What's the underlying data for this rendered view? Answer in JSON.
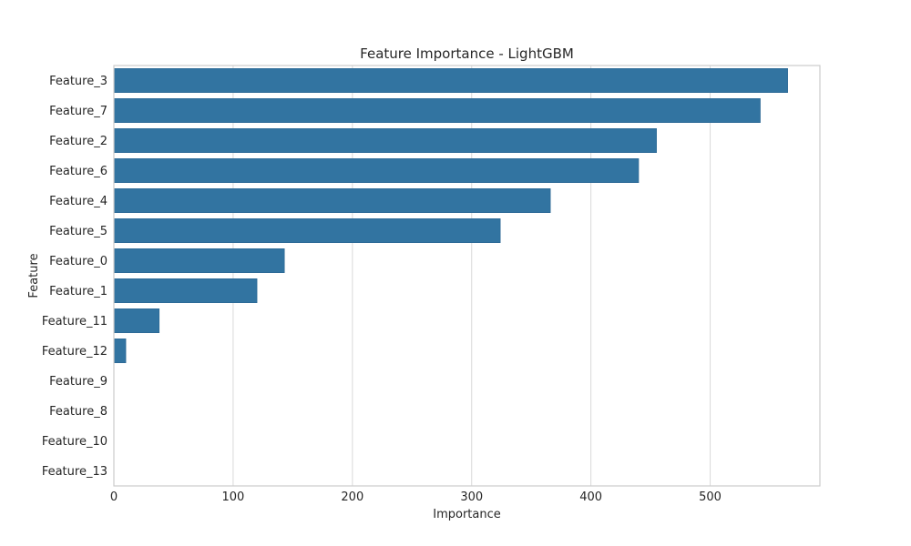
{
  "chart_data": {
    "type": "bar",
    "orientation": "horizontal",
    "title": "Feature Importance - LightGBM",
    "xlabel": "Importance",
    "ylabel": "Feature",
    "categories": [
      "Feature_3",
      "Feature_7",
      "Feature_2",
      "Feature_6",
      "Feature_4",
      "Feature_5",
      "Feature_0",
      "Feature_1",
      "Feature_11",
      "Feature_12",
      "Feature_9",
      "Feature_8",
      "Feature_10",
      "Feature_13"
    ],
    "values": [
      565,
      542,
      455,
      440,
      366,
      324,
      143,
      120,
      38,
      10,
      0,
      0,
      0,
      0
    ],
    "xlim": [
      0,
      592
    ],
    "xticks": [
      0,
      100,
      200,
      300,
      400,
      500
    ],
    "grid": "vertical",
    "bar_color": "#3274a1"
  }
}
